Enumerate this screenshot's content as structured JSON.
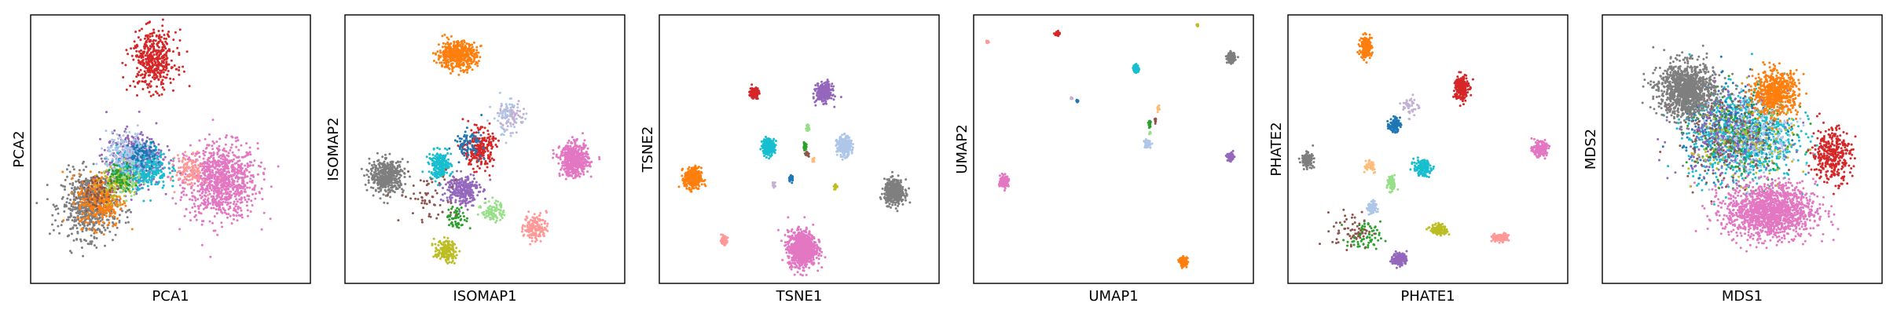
{
  "chart_data": [
    {
      "type": "scatter",
      "xlabel": "PCA1",
      "ylabel": "PCA2",
      "clusters": [
        {
          "color": "#e377c2",
          "cx": 0.68,
          "cy": 0.38,
          "sx": 0.13,
          "sy": 0.14,
          "n": 900
        },
        {
          "color": "#7f7f7f",
          "cx": 0.21,
          "cy": 0.29,
          "sx": 0.1,
          "sy": 0.12,
          "n": 650
        },
        {
          "color": "#ff7f0e",
          "cx": 0.25,
          "cy": 0.31,
          "sx": 0.08,
          "sy": 0.1,
          "n": 300
        },
        {
          "color": "#9467bd",
          "cx": 0.37,
          "cy": 0.46,
          "sx": 0.1,
          "sy": 0.1,
          "n": 450
        },
        {
          "color": "#17becf",
          "cx": 0.4,
          "cy": 0.43,
          "sx": 0.09,
          "sy": 0.08,
          "n": 320
        },
        {
          "color": "#aec7e8",
          "cx": 0.35,
          "cy": 0.48,
          "sx": 0.08,
          "sy": 0.08,
          "n": 200
        },
        {
          "color": "#d62728",
          "cx": 0.44,
          "cy": 0.83,
          "sx": 0.08,
          "sy": 0.11,
          "n": 420
        },
        {
          "color": "#ff9896",
          "cx": 0.57,
          "cy": 0.42,
          "sx": 0.05,
          "sy": 0.06,
          "n": 120
        },
        {
          "color": "#98df8a",
          "cx": 0.33,
          "cy": 0.38,
          "sx": 0.06,
          "sy": 0.06,
          "n": 90
        },
        {
          "color": "#1f77b4",
          "cx": 0.4,
          "cy": 0.48,
          "sx": 0.05,
          "sy": 0.05,
          "n": 80
        },
        {
          "color": "#bcbd22",
          "cx": 0.3,
          "cy": 0.36,
          "sx": 0.06,
          "sy": 0.06,
          "n": 80
        },
        {
          "color": "#2ca02c",
          "cx": 0.32,
          "cy": 0.4,
          "sx": 0.05,
          "sy": 0.05,
          "n": 60
        },
        {
          "color": "#8c564b",
          "cx": 0.24,
          "cy": 0.34,
          "sx": 0.06,
          "sy": 0.06,
          "n": 60
        }
      ]
    },
    {
      "type": "scatter",
      "xlabel": "ISOMAP1",
      "ylabel": "ISOMAP2",
      "clusters": [
        {
          "color": "#ff7f0e",
          "cx": 0.4,
          "cy": 0.85,
          "sx": 0.07,
          "sy": 0.05,
          "n": 500
        },
        {
          "color": "#7f7f7f",
          "cx": 0.15,
          "cy": 0.4,
          "sx": 0.06,
          "sy": 0.06,
          "n": 450
        },
        {
          "color": "#e377c2",
          "cx": 0.82,
          "cy": 0.46,
          "sx": 0.05,
          "sy": 0.06,
          "n": 500
        },
        {
          "color": "#17becf",
          "cx": 0.34,
          "cy": 0.44,
          "sx": 0.04,
          "sy": 0.05,
          "n": 200
        },
        {
          "color": "#9467bd",
          "cx": 0.42,
          "cy": 0.35,
          "sx": 0.06,
          "sy": 0.06,
          "n": 250
        },
        {
          "color": "#d62728",
          "cx": 0.48,
          "cy": 0.5,
          "sx": 0.05,
          "sy": 0.07,
          "n": 250
        },
        {
          "color": "#1f77b4",
          "cx": 0.44,
          "cy": 0.52,
          "sx": 0.05,
          "sy": 0.05,
          "n": 80
        },
        {
          "color": "#aec7e8",
          "cx": 0.58,
          "cy": 0.62,
          "sx": 0.05,
          "sy": 0.07,
          "n": 80
        },
        {
          "color": "#bcbd22",
          "cx": 0.36,
          "cy": 0.12,
          "sx": 0.04,
          "sy": 0.04,
          "n": 150
        },
        {
          "color": "#ff9896",
          "cx": 0.68,
          "cy": 0.21,
          "sx": 0.04,
          "sy": 0.05,
          "n": 150
        },
        {
          "color": "#98df8a",
          "cx": 0.53,
          "cy": 0.27,
          "sx": 0.04,
          "sy": 0.04,
          "n": 90
        },
        {
          "color": "#2ca02c",
          "cx": 0.4,
          "cy": 0.24,
          "sx": 0.04,
          "sy": 0.04,
          "n": 60
        },
        {
          "color": "#8c564b",
          "cx": 0.3,
          "cy": 0.32,
          "sx": 0.1,
          "sy": 0.1,
          "n": 60
        },
        {
          "color": "#c5b0d5",
          "cx": 0.6,
          "cy": 0.62,
          "sx": 0.05,
          "sy": 0.05,
          "n": 50
        }
      ]
    },
    {
      "type": "scatter",
      "xlabel": "TSNE1",
      "ylabel": "TSNE2",
      "clusters": [
        {
          "color": "#ff7f0e",
          "cx": 0.12,
          "cy": 0.39,
          "sx": 0.03,
          "sy": 0.04,
          "n": 350
        },
        {
          "color": "#e377c2",
          "cx": 0.51,
          "cy": 0.13,
          "sx": 0.05,
          "sy": 0.065,
          "n": 900
        },
        {
          "color": "#7f7f7f",
          "cx": 0.84,
          "cy": 0.34,
          "sx": 0.035,
          "sy": 0.045,
          "n": 450
        },
        {
          "color": "#9467bd",
          "cx": 0.59,
          "cy": 0.71,
          "sx": 0.028,
          "sy": 0.035,
          "n": 300
        },
        {
          "color": "#aec7e8",
          "cx": 0.66,
          "cy": 0.51,
          "sx": 0.025,
          "sy": 0.035,
          "n": 300
        },
        {
          "color": "#17becf",
          "cx": 0.39,
          "cy": 0.51,
          "sx": 0.022,
          "sy": 0.03,
          "n": 250
        },
        {
          "color": "#d62728",
          "cx": 0.34,
          "cy": 0.71,
          "sx": 0.015,
          "sy": 0.02,
          "n": 150
        },
        {
          "color": "#ff9896",
          "cx": 0.23,
          "cy": 0.16,
          "sx": 0.012,
          "sy": 0.015,
          "n": 70
        },
        {
          "color": "#98df8a",
          "cx": 0.53,
          "cy": 0.58,
          "sx": 0.006,
          "sy": 0.012,
          "n": 25
        },
        {
          "color": "#2ca02c",
          "cx": 0.52,
          "cy": 0.51,
          "sx": 0.006,
          "sy": 0.012,
          "n": 25
        },
        {
          "color": "#1f77b4",
          "cx": 0.47,
          "cy": 0.39,
          "sx": 0.008,
          "sy": 0.012,
          "n": 30
        },
        {
          "color": "#bcbd22",
          "cx": 0.63,
          "cy": 0.36,
          "sx": 0.006,
          "sy": 0.008,
          "n": 25
        },
        {
          "color": "#c5b0d5",
          "cx": 0.41,
          "cy": 0.37,
          "sx": 0.005,
          "sy": 0.008,
          "n": 15
        },
        {
          "color": "#ffbb78",
          "cx": 0.55,
          "cy": 0.46,
          "sx": 0.005,
          "sy": 0.008,
          "n": 15
        },
        {
          "color": "#8c564b",
          "cx": 0.53,
          "cy": 0.48,
          "sx": 0.008,
          "sy": 0.01,
          "n": 15
        }
      ]
    },
    {
      "type": "scatter",
      "xlabel": "UMAP1",
      "ylabel": "UMAP2",
      "clusters": [
        {
          "color": "#e377c2",
          "cx": 0.11,
          "cy": 0.38,
          "sx": 0.015,
          "sy": 0.02,
          "n": 200
        },
        {
          "color": "#ff7f0e",
          "cx": 0.75,
          "cy": 0.08,
          "sx": 0.012,
          "sy": 0.016,
          "n": 150
        },
        {
          "color": "#7f7f7f",
          "cx": 0.92,
          "cy": 0.84,
          "sx": 0.014,
          "sy": 0.018,
          "n": 150
        },
        {
          "color": "#9467bd",
          "cx": 0.92,
          "cy": 0.47,
          "sx": 0.012,
          "sy": 0.014,
          "n": 100
        },
        {
          "color": "#aec7e8",
          "cx": 0.62,
          "cy": 0.52,
          "sx": 0.01,
          "sy": 0.014,
          "n": 80
        },
        {
          "color": "#17becf",
          "cx": 0.58,
          "cy": 0.8,
          "sx": 0.01,
          "sy": 0.014,
          "n": 80
        },
        {
          "color": "#d62728",
          "cx": 0.3,
          "cy": 0.93,
          "sx": 0.008,
          "sy": 0.008,
          "n": 50
        },
        {
          "color": "#ff9896",
          "cx": 0.05,
          "cy": 0.9,
          "sx": 0.004,
          "sy": 0.006,
          "n": 20
        },
        {
          "color": "#1f77b4",
          "cx": 0.37,
          "cy": 0.68,
          "sx": 0.004,
          "sy": 0.005,
          "n": 15
        },
        {
          "color": "#c5b0d5",
          "cx": 0.35,
          "cy": 0.69,
          "sx": 0.005,
          "sy": 0.004,
          "n": 12
        },
        {
          "color": "#2ca02c",
          "cx": 0.63,
          "cy": 0.59,
          "sx": 0.004,
          "sy": 0.014,
          "n": 20
        },
        {
          "color": "#ffbb78",
          "cx": 0.66,
          "cy": 0.65,
          "sx": 0.004,
          "sy": 0.01,
          "n": 15
        },
        {
          "color": "#8c564b",
          "cx": 0.65,
          "cy": 0.61,
          "sx": 0.003,
          "sy": 0.01,
          "n": 12
        },
        {
          "color": "#bcbd22",
          "cx": 0.8,
          "cy": 0.96,
          "sx": 0.003,
          "sy": 0.004,
          "n": 10
        },
        {
          "color": "#98df8a",
          "cx": 0.63,
          "cy": 0.56,
          "sx": 0.003,
          "sy": 0.006,
          "n": 10
        }
      ]
    },
    {
      "type": "scatter",
      "xlabel": "PHATE1",
      "ylabel": "PHATE2",
      "clusters": [
        {
          "color": "#ff7f0e",
          "cx": 0.28,
          "cy": 0.88,
          "sx": 0.02,
          "sy": 0.04,
          "n": 200
        },
        {
          "color": "#d62728",
          "cx": 0.62,
          "cy": 0.73,
          "sx": 0.025,
          "sy": 0.05,
          "n": 220
        },
        {
          "color": "#e377c2",
          "cx": 0.9,
          "cy": 0.5,
          "sx": 0.025,
          "sy": 0.025,
          "n": 200
        },
        {
          "color": "#7f7f7f",
          "cx": 0.07,
          "cy": 0.46,
          "sx": 0.02,
          "sy": 0.025,
          "n": 150
        },
        {
          "color": "#17becf",
          "cx": 0.48,
          "cy": 0.43,
          "sx": 0.03,
          "sy": 0.03,
          "n": 150
        },
        {
          "color": "#1f77b4",
          "cx": 0.38,
          "cy": 0.59,
          "sx": 0.02,
          "sy": 0.025,
          "n": 100
        },
        {
          "color": "#9467bd",
          "cx": 0.4,
          "cy": 0.09,
          "sx": 0.025,
          "sy": 0.025,
          "n": 150
        },
        {
          "color": "#bcbd22",
          "cx": 0.54,
          "cy": 0.2,
          "sx": 0.03,
          "sy": 0.02,
          "n": 120
        },
        {
          "color": "#ff9896",
          "cx": 0.76,
          "cy": 0.17,
          "sx": 0.03,
          "sy": 0.015,
          "n": 100
        },
        {
          "color": "#98df8a",
          "cx": 0.37,
          "cy": 0.37,
          "sx": 0.015,
          "sy": 0.03,
          "n": 80
        },
        {
          "color": "#aec7e8",
          "cx": 0.3,
          "cy": 0.28,
          "sx": 0.015,
          "sy": 0.025,
          "n": 80
        },
        {
          "color": "#2ca02c",
          "cx": 0.27,
          "cy": 0.17,
          "sx": 0.06,
          "sy": 0.06,
          "n": 70
        },
        {
          "color": "#8c564b",
          "cx": 0.23,
          "cy": 0.2,
          "sx": 0.07,
          "sy": 0.07,
          "n": 60
        },
        {
          "color": "#c5b0d5",
          "cx": 0.44,
          "cy": 0.66,
          "sx": 0.03,
          "sy": 0.04,
          "n": 40
        },
        {
          "color": "#ffbb78",
          "cx": 0.29,
          "cy": 0.44,
          "sx": 0.03,
          "sy": 0.03,
          "n": 40
        }
      ]
    },
    {
      "type": "scatter",
      "xlabel": "MDS1",
      "ylabel": "MDS2",
      "clusters": [
        {
          "color": "#17becf",
          "cx": 0.5,
          "cy": 0.55,
          "sx": 0.19,
          "sy": 0.17,
          "n": 900
        },
        {
          "color": "#1f77b4",
          "cx": 0.46,
          "cy": 0.58,
          "sx": 0.17,
          "sy": 0.16,
          "n": 250
        },
        {
          "color": "#9467bd",
          "cx": 0.45,
          "cy": 0.55,
          "sx": 0.18,
          "sy": 0.16,
          "n": 300
        },
        {
          "color": "#aec7e8",
          "cx": 0.55,
          "cy": 0.55,
          "sx": 0.15,
          "sy": 0.15,
          "n": 200
        },
        {
          "color": "#bcbd22",
          "cx": 0.5,
          "cy": 0.52,
          "sx": 0.19,
          "sy": 0.18,
          "n": 150
        },
        {
          "color": "#2ca02c",
          "cx": 0.5,
          "cy": 0.55,
          "sx": 0.19,
          "sy": 0.18,
          "n": 120
        },
        {
          "color": "#8c564b",
          "cx": 0.45,
          "cy": 0.55,
          "sx": 0.19,
          "sy": 0.18,
          "n": 120
        },
        {
          "color": "#d62728",
          "cx": 0.82,
          "cy": 0.48,
          "sx": 0.07,
          "sy": 0.1,
          "n": 350
        },
        {
          "color": "#ff7f0e",
          "cx": 0.62,
          "cy": 0.71,
          "sx": 0.08,
          "sy": 0.08,
          "n": 600
        },
        {
          "color": "#7f7f7f",
          "cx": 0.3,
          "cy": 0.72,
          "sx": 0.1,
          "sy": 0.1,
          "n": 1100
        },
        {
          "color": "#e377c2",
          "cx": 0.6,
          "cy": 0.27,
          "sx": 0.16,
          "sy": 0.1,
          "n": 1400
        }
      ]
    }
  ]
}
